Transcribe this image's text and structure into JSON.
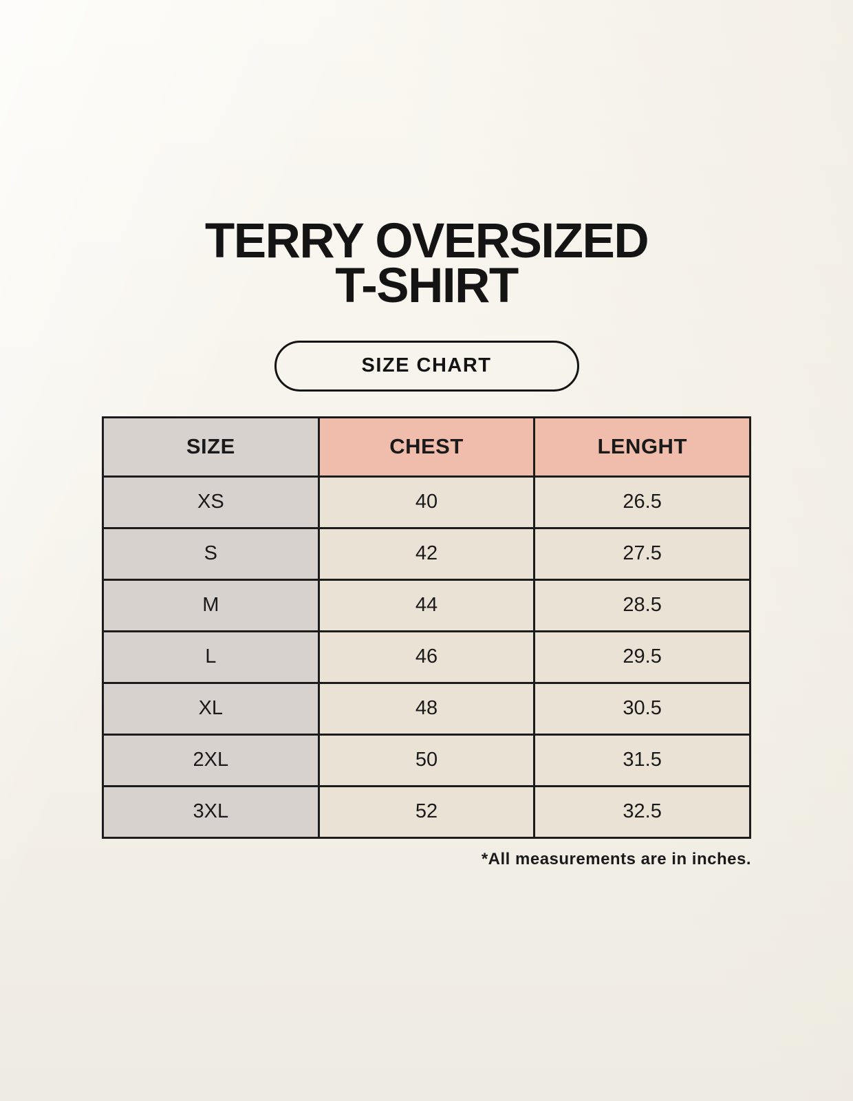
{
  "page": {
    "title_line1": "TERRY OVERSIZED",
    "title_line2": "T-SHIRT",
    "badge_label": "SIZE CHART",
    "footnote": "*All measurements are in inches."
  },
  "table": {
    "headers": [
      "SIZE",
      "CHEST",
      "LENGHT"
    ],
    "rows": [
      {
        "size": "XS",
        "chest": "40",
        "length": "26.5"
      },
      {
        "size": "S",
        "chest": "42",
        "length": "27.5"
      },
      {
        "size": "M",
        "chest": "44",
        "length": "28.5"
      },
      {
        "size": "L",
        "chest": "46",
        "length": "29.5"
      },
      {
        "size": "XL",
        "chest": "48",
        "length": "30.5"
      },
      {
        "size": "2XL",
        "chest": "50",
        "length": "31.5"
      },
      {
        "size": "3XL",
        "chest": "52",
        "length": "32.5"
      }
    ]
  },
  "colors": {
    "background": "#f6f3ec",
    "size_column": "#d8d2ce",
    "header_accent_salmon": "#f0bcac",
    "data_cell": "#eae3d5",
    "border": "#1c1c1c",
    "text": "#141414"
  },
  "chart_data": {
    "type": "table",
    "title": "TERRY OVERSIZED T-SHIRT — SIZE CHART",
    "columns": [
      "SIZE",
      "CHEST",
      "LENGHT"
    ],
    "rows": [
      [
        "XS",
        40,
        26.5
      ],
      [
        "S",
        42,
        27.5
      ],
      [
        "M",
        44,
        28.5
      ],
      [
        "L",
        46,
        29.5
      ],
      [
        "XL",
        48,
        30.5
      ],
      [
        "2XL",
        50,
        31.5
      ],
      [
        "3XL",
        52,
        32.5
      ]
    ],
    "note": "*All measurements are in inches.",
    "units": "inches"
  }
}
